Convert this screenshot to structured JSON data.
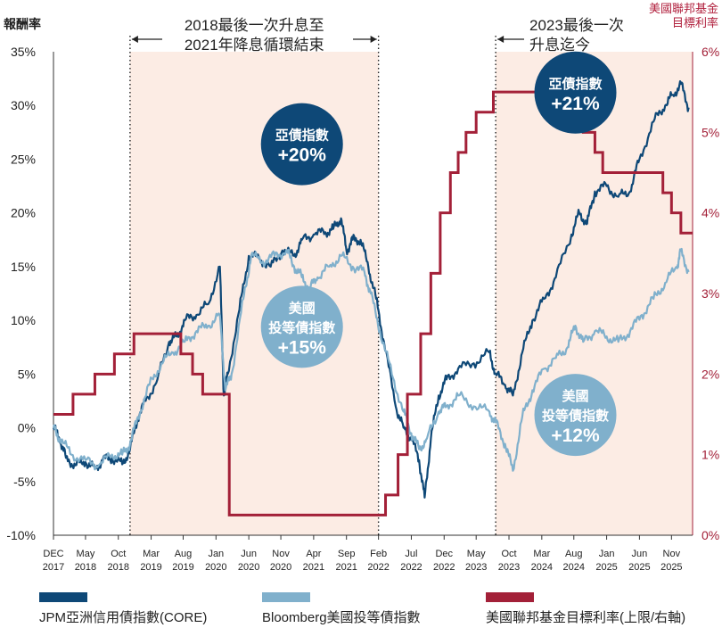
{
  "chart_data": {
    "type": "line",
    "y_left": {
      "title": "報酬率",
      "ticks": [
        "35%",
        "30%",
        "25%",
        "20%",
        "15%",
        "10%",
        "5%",
        "0%",
        "-5%",
        "-10%"
      ],
      "range": [
        -10,
        35
      ]
    },
    "y_right": {
      "title": [
        "美國聯邦基金",
        "目標利率"
      ],
      "ticks": [
        "6%",
        "5%",
        "4%",
        "3%",
        "2%",
        "1%",
        "0%"
      ],
      "range": [
        0,
        6
      ]
    },
    "x_ticks": [
      {
        "t": 2017.92,
        "l1": "DEC",
        "l2": "2017"
      },
      {
        "t": 2018.33,
        "l1": "May",
        "l2": "2018"
      },
      {
        "t": 2018.75,
        "l1": "Oct",
        "l2": "2018"
      },
      {
        "t": 2019.17,
        "l1": "Mar",
        "l2": "2019"
      },
      {
        "t": 2019.58,
        "l1": "Aug",
        "l2": "2019"
      },
      {
        "t": 2020.0,
        "l1": "Jan",
        "l2": "2020"
      },
      {
        "t": 2020.42,
        "l1": "Jun",
        "l2": "2020"
      },
      {
        "t": 2020.83,
        "l1": "Nov",
        "l2": "2020"
      },
      {
        "t": 2021.25,
        "l1": "Apr",
        "l2": "2021"
      },
      {
        "t": 2021.67,
        "l1": "Sep",
        "l2": "2021"
      },
      {
        "t": 2022.08,
        "l1": "Feb",
        "l2": "2022"
      },
      {
        "t": 2022.5,
        "l1": "Jul",
        "l2": "2022"
      },
      {
        "t": 2022.92,
        "l1": "Dec",
        "l2": "2022"
      },
      {
        "t": 2023.33,
        "l1": "May",
        "l2": "2023"
      },
      {
        "t": 2023.75,
        "l1": "Oct",
        "l2": "2023"
      },
      {
        "t": 2024.17,
        "l1": "Mar",
        "l2": "2024"
      },
      {
        "t": 2024.58,
        "l1": "Aug",
        "l2": "2024"
      },
      {
        "t": 2025.0,
        "l1": "Jan",
        "l2": "2025"
      },
      {
        "t": 2025.42,
        "l1": "Jun",
        "l2": "2025"
      },
      {
        "t": 2025.83,
        "l1": "Nov",
        "l2": "2025"
      }
    ],
    "shaded_periods": [
      [
        2018.9,
        2022.08
      ],
      [
        2023.58,
        2026.1
      ]
    ],
    "annotations": [
      {
        "text": [
          "2018最後一次升息至",
          "2021年降息循環結束"
        ],
        "start": 2018.9,
        "end": 2022.08
      },
      {
        "text": [
          "2023最後一次",
          "升息迄今"
        ],
        "start": 2023.58
      }
    ],
    "bubbles": [
      {
        "lines": [
          "亞債指數",
          "+20%"
        ],
        "color": "#0e4877",
        "t": 2021.1,
        "v": 26.4
      },
      {
        "lines": [
          "美國",
          "投等債指數",
          "+15%"
        ],
        "color": "#80b0cc",
        "t": 2021.1,
        "v": 9.4
      },
      {
        "lines": [
          "亞債指數",
          "+21%"
        ],
        "color": "#0e4877",
        "t": 2024.6,
        "v": 31.2
      },
      {
        "lines": [
          "美國",
          "投等債指數",
          "+12%"
        ],
        "color": "#80b0cc",
        "t": 2024.6,
        "v": 1.2
      }
    ],
    "series": [
      {
        "name": "JPM亞洲信用債指數(CORE)",
        "axis": "left",
        "color": "#0e4877",
        "points": [
          [
            2017.92,
            0
          ],
          [
            2018.0,
            -1.0
          ],
          [
            2018.08,
            -2.8
          ],
          [
            2018.2,
            -3.5
          ],
          [
            2018.33,
            -3.2
          ],
          [
            2018.45,
            -3.8
          ],
          [
            2018.55,
            -3.0
          ],
          [
            2018.67,
            -2.8
          ],
          [
            2018.8,
            -3.4
          ],
          [
            2018.9,
            -2.0
          ],
          [
            2019.0,
            1.0
          ],
          [
            2019.1,
            2.5
          ],
          [
            2019.25,
            4.5
          ],
          [
            2019.4,
            8.0
          ],
          [
            2019.5,
            8.5
          ],
          [
            2019.6,
            10.0
          ],
          [
            2019.75,
            10.5
          ],
          [
            2019.9,
            11.5
          ],
          [
            2020.05,
            15.0
          ],
          [
            2020.1,
            3.0
          ],
          [
            2020.15,
            5.0
          ],
          [
            2020.3,
            11.0
          ],
          [
            2020.42,
            16.0
          ],
          [
            2020.55,
            15.8
          ],
          [
            2020.7,
            15.0
          ],
          [
            2020.85,
            16.5
          ],
          [
            2021.0,
            16.0
          ],
          [
            2021.1,
            17.5
          ],
          [
            2021.25,
            18.0
          ],
          [
            2021.4,
            18.2
          ],
          [
            2021.5,
            18.5
          ],
          [
            2021.6,
            19.5
          ],
          [
            2021.67,
            16.5
          ],
          [
            2021.75,
            17.5
          ],
          [
            2021.85,
            17.5
          ],
          [
            2021.95,
            15.0
          ],
          [
            2022.05,
            12.0
          ],
          [
            2022.15,
            8.0
          ],
          [
            2022.3,
            2.0
          ],
          [
            2022.4,
            0.0
          ],
          [
            2022.5,
            -1.0
          ],
          [
            2022.6,
            -3.0
          ],
          [
            2022.67,
            -6.5
          ],
          [
            2022.75,
            -1.0
          ],
          [
            2022.85,
            3.0
          ],
          [
            2022.95,
            4.5
          ],
          [
            2023.1,
            5.5
          ],
          [
            2023.3,
            6.0
          ],
          [
            2023.5,
            7.0
          ],
          [
            2023.58,
            5.0
          ],
          [
            2023.7,
            4.0
          ],
          [
            2023.8,
            3.0
          ],
          [
            2023.92,
            7.0
          ],
          [
            2024.05,
            10.0
          ],
          [
            2024.2,
            12.0
          ],
          [
            2024.35,
            14.0
          ],
          [
            2024.55,
            18.0
          ],
          [
            2024.65,
            20.0
          ],
          [
            2024.75,
            19.0
          ],
          [
            2024.85,
            22.0
          ],
          [
            2025.0,
            22.5
          ],
          [
            2025.15,
            21.5
          ],
          [
            2025.3,
            22.0
          ],
          [
            2025.42,
            25.0
          ],
          [
            2025.6,
            28.5
          ],
          [
            2025.75,
            30.0
          ],
          [
            2025.85,
            31.0
          ],
          [
            2025.95,
            32.0
          ],
          [
            2026.05,
            29.8
          ]
        ]
      },
      {
        "name": "Bloomberg美國投等債指數",
        "axis": "left",
        "color": "#80b0cc",
        "points": [
          [
            2017.92,
            0
          ],
          [
            2018.0,
            -1.0
          ],
          [
            2018.15,
            -2.5
          ],
          [
            2018.33,
            -3.0
          ],
          [
            2018.5,
            -3.5
          ],
          [
            2018.67,
            -2.5
          ],
          [
            2018.8,
            -2.5
          ],
          [
            2018.9,
            -1.5
          ],
          [
            2019.0,
            1.0
          ],
          [
            2019.15,
            4.0
          ],
          [
            2019.3,
            6.0
          ],
          [
            2019.45,
            7.0
          ],
          [
            2019.6,
            8.0
          ],
          [
            2019.75,
            9.0
          ],
          [
            2019.9,
            9.5
          ],
          [
            2020.05,
            10.5
          ],
          [
            2020.12,
            3.5
          ],
          [
            2020.2,
            5.0
          ],
          [
            2020.35,
            12.0
          ],
          [
            2020.45,
            16.0
          ],
          [
            2020.6,
            15.5
          ],
          [
            2020.75,
            16.0
          ],
          [
            2020.9,
            16.5
          ],
          [
            2021.0,
            15.0
          ],
          [
            2021.1,
            14.0
          ],
          [
            2021.2,
            13.0
          ],
          [
            2021.3,
            14.0
          ],
          [
            2021.45,
            15.0
          ],
          [
            2021.6,
            16.0
          ],
          [
            2021.75,
            15.0
          ],
          [
            2021.9,
            14.5
          ],
          [
            2021.98,
            12.5
          ],
          [
            2022.1,
            9.0
          ],
          [
            2022.25,
            5.0
          ],
          [
            2022.4,
            1.5
          ],
          [
            2022.5,
            -0.5
          ],
          [
            2022.6,
            -2.0
          ],
          [
            2022.7,
            -1.0
          ],
          [
            2022.85,
            1.5
          ],
          [
            2022.95,
            2.0
          ],
          [
            2023.1,
            3.0
          ],
          [
            2023.3,
            2.0
          ],
          [
            2023.5,
            1.5
          ],
          [
            2023.58,
            0.5
          ],
          [
            2023.7,
            -1.5
          ],
          [
            2023.8,
            -4.0
          ],
          [
            2023.92,
            1.0
          ],
          [
            2024.05,
            3.5
          ],
          [
            2024.2,
            5.5
          ],
          [
            2024.35,
            6.5
          ],
          [
            2024.5,
            7.5
          ],
          [
            2024.6,
            9.5
          ],
          [
            2024.7,
            8.0
          ],
          [
            2024.85,
            9.0
          ],
          [
            2025.0,
            8.5
          ],
          [
            2025.15,
            8.0
          ],
          [
            2025.3,
            9.0
          ],
          [
            2025.45,
            10.5
          ],
          [
            2025.6,
            12.0
          ],
          [
            2025.75,
            13.5
          ],
          [
            2025.9,
            15.0
          ],
          [
            2025.95,
            16.5
          ],
          [
            2026.05,
            14.5
          ]
        ]
      },
      {
        "name": "美國聯邦基金目標利率(上限/右軸)",
        "axis": "right",
        "color": "#a32038",
        "points": [
          [
            2017.92,
            1.5
          ],
          [
            2018.17,
            1.75
          ],
          [
            2018.45,
            2.0
          ],
          [
            2018.7,
            2.25
          ],
          [
            2018.95,
            2.5
          ],
          [
            2019.55,
            2.25
          ],
          [
            2019.7,
            2.0
          ],
          [
            2019.83,
            1.75
          ],
          [
            2020.17,
            0.25
          ],
          [
            2022.17,
            0.5
          ],
          [
            2022.33,
            1.0
          ],
          [
            2022.45,
            1.75
          ],
          [
            2022.62,
            2.5
          ],
          [
            2022.75,
            3.25
          ],
          [
            2022.87,
            4.0
          ],
          [
            2023.0,
            4.5
          ],
          [
            2023.1,
            4.75
          ],
          [
            2023.2,
            5.0
          ],
          [
            2023.33,
            5.25
          ],
          [
            2023.55,
            5.5
          ],
          [
            2024.7,
            5.0
          ],
          [
            2024.85,
            4.75
          ],
          [
            2024.95,
            4.5
          ],
          [
            2025.72,
            4.25
          ],
          [
            2025.83,
            4.0
          ],
          [
            2025.95,
            3.75
          ],
          [
            2026.1,
            3.75
          ]
        ]
      }
    ]
  }
}
